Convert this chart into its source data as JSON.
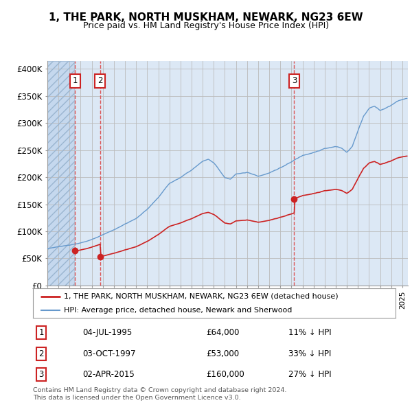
{
  "title": "1, THE PARK, NORTH MUSKHAM, NEWARK, NG23 6EW",
  "subtitle": "Price paid vs. HM Land Registry's House Price Index (HPI)",
  "ylabel_ticks": [
    "£0",
    "£50K",
    "£100K",
    "£150K",
    "£200K",
    "£250K",
    "£300K",
    "£350K",
    "£400K"
  ],
  "ytick_values": [
    0,
    50000,
    100000,
    150000,
    200000,
    250000,
    300000,
    350000,
    400000
  ],
  "ylim": [
    0,
    415000
  ],
  "xlim_start": 1993.0,
  "xlim_end": 2025.5,
  "hatch_end_year": 1995.4,
  "grid_color": "#bbbbbb",
  "plot_bg_color": "#dce8f5",
  "hatch_bg_color": "#c5d8ee",
  "transactions": [
    {
      "label": "1",
      "date": "04-JUL-1995",
      "year": 1995.5,
      "price": 64000,
      "pct": "11% ↓ HPI"
    },
    {
      "label": "2",
      "date": "03-OCT-1997",
      "year": 1997.75,
      "price": 53000,
      "pct": "33% ↓ HPI"
    },
    {
      "label": "3",
      "date": "02-APR-2015",
      "year": 2015.25,
      "price": 160000,
      "pct": "27% ↓ HPI"
    }
  ],
  "legend_line1": "1, THE PARK, NORTH MUSKHAM, NEWARK, NG23 6EW (detached house)",
  "legend_line2": "HPI: Average price, detached house, Newark and Sherwood",
  "footer1": "Contains HM Land Registry data © Crown copyright and database right 2024.",
  "footer2": "This data is licensed under the Open Government Licence v3.0.",
  "hpi_color": "#6699cc",
  "price_color": "#cc2222",
  "marker_color": "#cc2222",
  "dashed_color": "#dd4444",
  "box_edge_color": "#cc2222"
}
